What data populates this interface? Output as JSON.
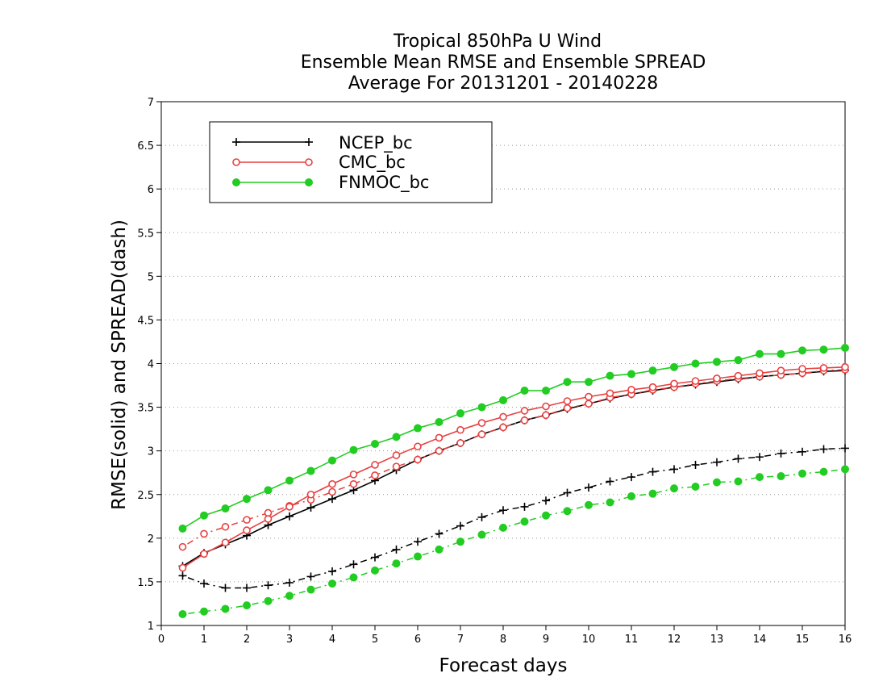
{
  "chart_data": {
    "type": "line",
    "title_lines": [
      "Tropical 850hPa U Wind",
      "Ensemble Mean RMSE and Ensemble SPREAD",
      "Average For 20131201 - 20140228"
    ],
    "xlabel": "Forecast days",
    "ylabel": "RMSE(solid) and SPREAD(dash)",
    "xlim": [
      0,
      16
    ],
    "ylim": [
      1,
      7
    ],
    "x_ticks": [
      0,
      1,
      2,
      3,
      4,
      5,
      6,
      7,
      8,
      9,
      10,
      11,
      12,
      13,
      14,
      15,
      16
    ],
    "y_ticks": [
      1,
      1.5,
      2,
      2.5,
      3,
      3.5,
      4,
      4.5,
      5,
      5.5,
      6,
      6.5,
      7
    ],
    "grid": "horizontal dotted",
    "legend_position": "top-left",
    "x": [
      0.5,
      1,
      1.5,
      2,
      2.5,
      3,
      3.5,
      4,
      4.5,
      5,
      5.5,
      6,
      6.5,
      7,
      7.5,
      8,
      8.5,
      9,
      9.5,
      10,
      10.5,
      11,
      11.5,
      12,
      12.5,
      13,
      13.5,
      14,
      14.5,
      15,
      15.5,
      16
    ],
    "series": [
      {
        "name": "NCEP_bc",
        "color": "#000000",
        "marker": "plus",
        "rmse": [
          1.68,
          1.83,
          1.93,
          2.03,
          2.15,
          2.25,
          2.35,
          2.45,
          2.55,
          2.66,
          2.78,
          2.9,
          3.0,
          3.09,
          3.19,
          3.27,
          3.35,
          3.41,
          3.48,
          3.54,
          3.6,
          3.65,
          3.69,
          3.73,
          3.76,
          3.79,
          3.82,
          3.85,
          3.87,
          3.89,
          3.91,
          3.92
        ],
        "spread": [
          1.57,
          1.48,
          1.43,
          1.43,
          1.46,
          1.49,
          1.56,
          1.62,
          1.7,
          1.78,
          1.87,
          1.96,
          2.05,
          2.14,
          2.24,
          2.32,
          2.36,
          2.43,
          2.52,
          2.58,
          2.65,
          2.7,
          2.76,
          2.79,
          2.84,
          2.87,
          2.91,
          2.93,
          2.97,
          2.99,
          3.02,
          3.03
        ]
      },
      {
        "name": "CMC_bc",
        "color": "#e84040",
        "marker": "open-circle",
        "rmse": [
          1.66,
          1.82,
          1.95,
          2.09,
          2.22,
          2.36,
          2.5,
          2.62,
          2.73,
          2.84,
          2.95,
          3.05,
          3.15,
          3.24,
          3.32,
          3.39,
          3.46,
          3.51,
          3.57,
          3.62,
          3.66,
          3.7,
          3.73,
          3.77,
          3.8,
          3.83,
          3.86,
          3.89,
          3.92,
          3.94,
          3.95,
          3.96
        ],
        "spread": [
          1.9,
          2.05,
          2.13,
          2.21,
          2.29,
          2.37,
          2.44,
          2.53,
          2.62,
          2.72,
          2.82,
          2.9,
          3.0,
          3.09,
          3.19,
          3.27,
          3.35,
          3.41,
          3.49,
          3.54,
          3.61,
          3.65,
          3.7,
          3.73,
          3.77,
          3.8,
          3.83,
          3.85,
          3.87,
          3.89,
          3.92,
          3.93
        ]
      },
      {
        "name": "FNMOC_bc",
        "color": "#22cc22",
        "marker": "filled-circle",
        "rmse": [
          2.11,
          2.26,
          2.34,
          2.45,
          2.55,
          2.66,
          2.77,
          2.89,
          3.01,
          3.08,
          3.16,
          3.26,
          3.33,
          3.43,
          3.5,
          3.58,
          3.69,
          3.69,
          3.79,
          3.79,
          3.86,
          3.88,
          3.92,
          3.96,
          4.0,
          4.02,
          4.04,
          4.11,
          4.11,
          4.15,
          4.16,
          4.18
        ],
        "spread": [
          1.13,
          1.16,
          1.19,
          1.23,
          1.28,
          1.34,
          1.41,
          1.48,
          1.55,
          1.63,
          1.71,
          1.79,
          1.87,
          1.96,
          2.04,
          2.12,
          2.19,
          2.26,
          2.31,
          2.38,
          2.41,
          2.48,
          2.51,
          2.57,
          2.59,
          2.64,
          2.65,
          2.7,
          2.71,
          2.74,
          2.76,
          2.79
        ]
      }
    ]
  }
}
